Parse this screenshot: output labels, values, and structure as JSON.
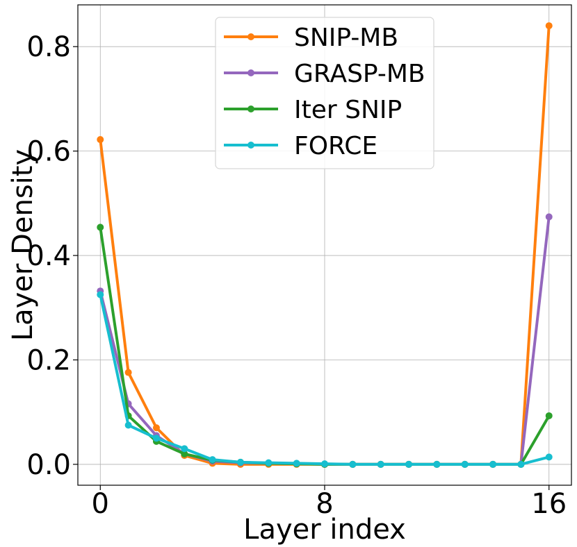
{
  "chart_data": {
    "type": "line",
    "title": "",
    "xlabel": "Layer index",
    "ylabel": "Layer Density",
    "xlim": [
      -0.8,
      16.8
    ],
    "ylim": [
      -0.04,
      0.88
    ],
    "xticks": [
      0,
      8,
      16
    ],
    "xtick_labels": [
      "0",
      "8",
      "16"
    ],
    "yticks": [
      0.0,
      0.2,
      0.4,
      0.6,
      0.8
    ],
    "ytick_labels": [
      "0.0",
      "0.2",
      "0.4",
      "0.6",
      "0.8"
    ],
    "grid": true,
    "legend_position": "top-center",
    "x": [
      0,
      1,
      2,
      3,
      4,
      5,
      6,
      7,
      8,
      9,
      10,
      11,
      12,
      13,
      14,
      15,
      16
    ],
    "series": [
      {
        "name": "SNIP-MB",
        "color": "#ff7f0e",
        "values": [
          0.622,
          0.176,
          0.07,
          0.017,
          0.002,
          0.0,
          0.0,
          0.0,
          0.0,
          0.0,
          0.0,
          0.0,
          0.0,
          0.0,
          0.0,
          0.0,
          0.84
        ]
      },
      {
        "name": "GRASP-MB",
        "color": "#9467bd",
        "values": [
          0.332,
          0.116,
          0.055,
          0.02,
          0.006,
          0.003,
          0.002,
          0.001,
          0.0,
          0.0,
          0.0,
          0.0,
          0.0,
          0.0,
          0.0,
          0.0,
          0.474
        ]
      },
      {
        "name": "Iter SNIP",
        "color": "#2ca02c",
        "values": [
          0.454,
          0.093,
          0.044,
          0.02,
          0.008,
          0.004,
          0.002,
          0.001,
          0.0,
          0.0,
          0.0,
          0.0,
          0.0,
          0.0,
          0.0,
          0.0,
          0.093
        ]
      },
      {
        "name": "FORCE",
        "color": "#17becf",
        "values": [
          0.325,
          0.075,
          0.05,
          0.03,
          0.009,
          0.004,
          0.003,
          0.002,
          0.001,
          0.0,
          0.0,
          0.0,
          0.0,
          0.0,
          0.0,
          0.0,
          0.014
        ]
      }
    ]
  }
}
